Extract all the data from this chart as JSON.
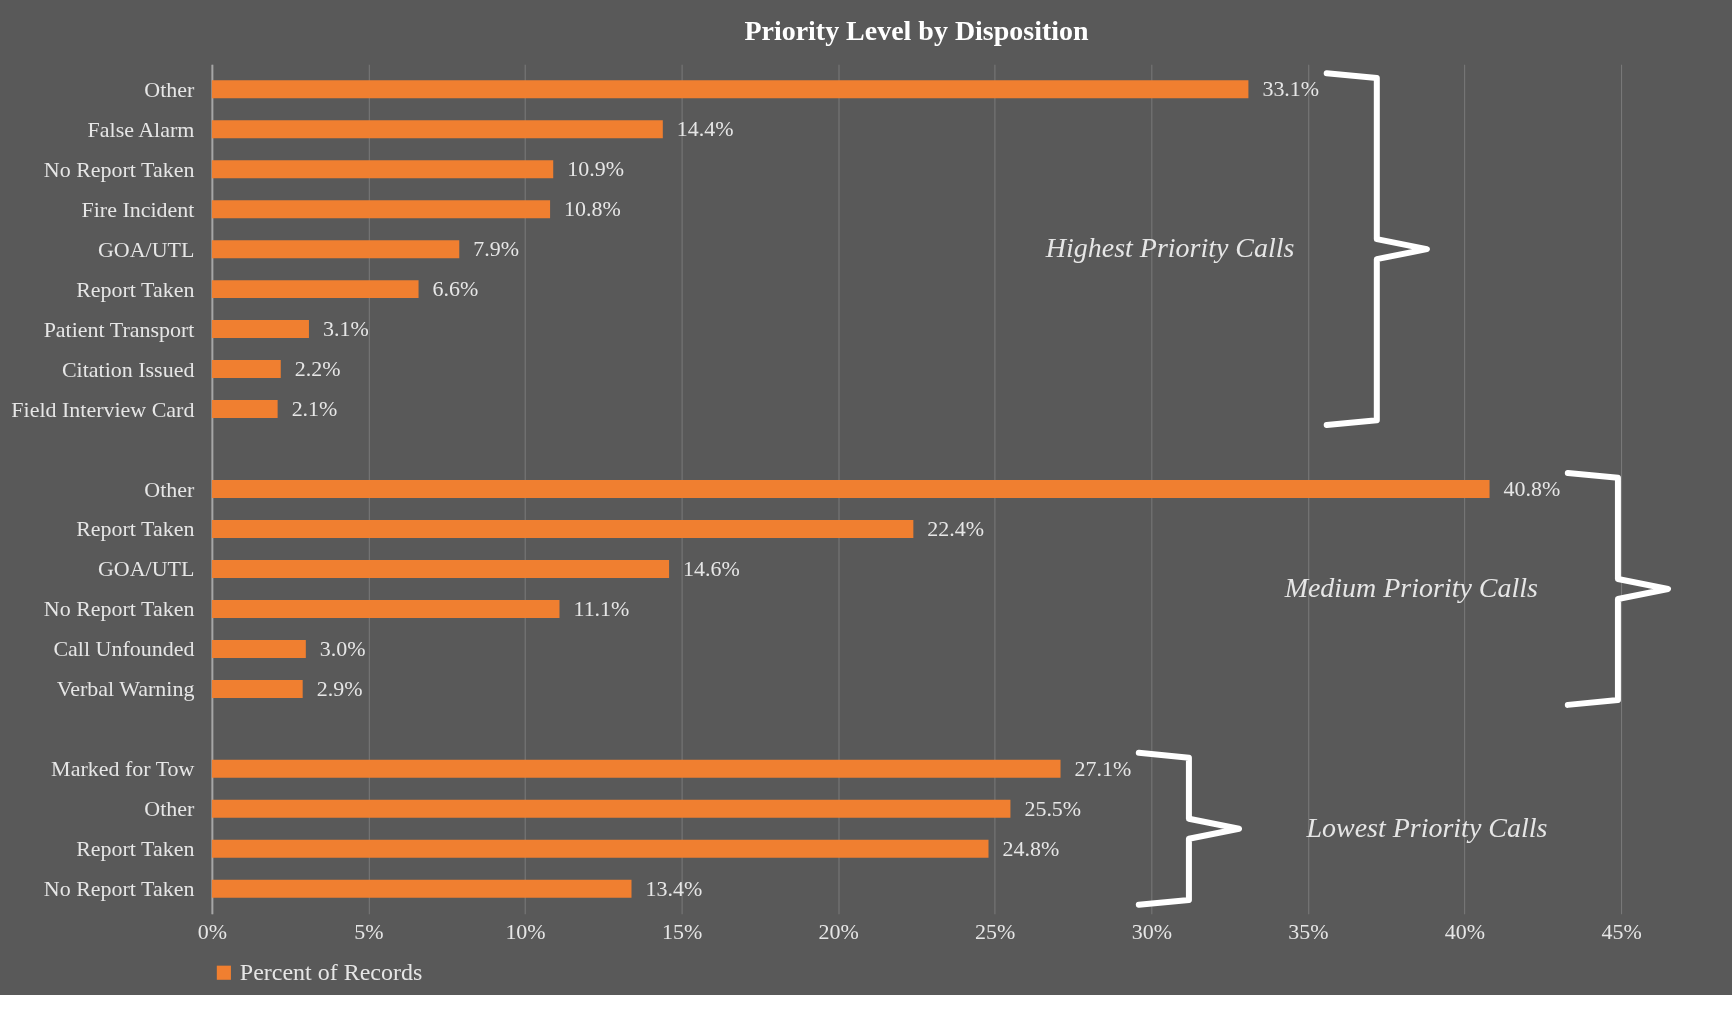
{
  "chart_data": {
    "type": "bar",
    "orientation": "horizontal",
    "title": "Priority Level by Disposition",
    "categories": [
      "Other",
      "False Alarm",
      "No Report Taken",
      "Fire Incident",
      "GOA/UTL",
      "Report Taken",
      "Patient Transport",
      "Citation Issued",
      "Field Interview Card",
      null,
      "Other",
      "Report Taken",
      "GOA/UTL",
      "No Report Taken",
      "Call Unfounded",
      "Verbal Warning",
      null,
      "Marked for Tow",
      "Other",
      "Report Taken",
      "No Report Taken"
    ],
    "series": [
      {
        "name": "Percent of Records",
        "color": "#f07f30",
        "values": [
          33.1,
          14.4,
          10.9,
          10.8,
          7.9,
          6.6,
          3.1,
          2.2,
          2.1,
          null,
          40.8,
          22.4,
          14.6,
          11.1,
          3.0,
          2.9,
          null,
          27.1,
          25.5,
          24.8,
          13.4
        ],
        "value_labels": [
          "33.1%",
          "14.4%",
          "10.9%",
          "10.8%",
          "7.9%",
          "6.6%",
          "3.1%",
          "2.2%",
          "2.1%",
          null,
          "40.8%",
          "22.4%",
          "14.6%",
          "11.1%",
          "3.0%",
          "2.9%",
          null,
          "27.1%",
          "25.5%",
          "24.8%",
          "13.4%"
        ]
      }
    ],
    "xlim": [
      0,
      45
    ],
    "xticks": [
      {
        "value": 0,
        "label": "0%"
      },
      {
        "value": 5,
        "label": "5%"
      },
      {
        "value": 10,
        "label": "10%"
      },
      {
        "value": 15,
        "label": "15%"
      },
      {
        "value": 20,
        "label": "20%"
      },
      {
        "value": 25,
        "label": "25%"
      },
      {
        "value": 30,
        "label": "30%"
      },
      {
        "value": 35,
        "label": "35%"
      },
      {
        "value": 40,
        "label": "40%"
      },
      {
        "value": 45,
        "label": "45%"
      }
    ],
    "annotations": [
      "Highest Priority Calls",
      "Medium Priority Calls",
      "Lowest Priority Calls"
    ],
    "grid": "x",
    "legend": "bottom"
  }
}
